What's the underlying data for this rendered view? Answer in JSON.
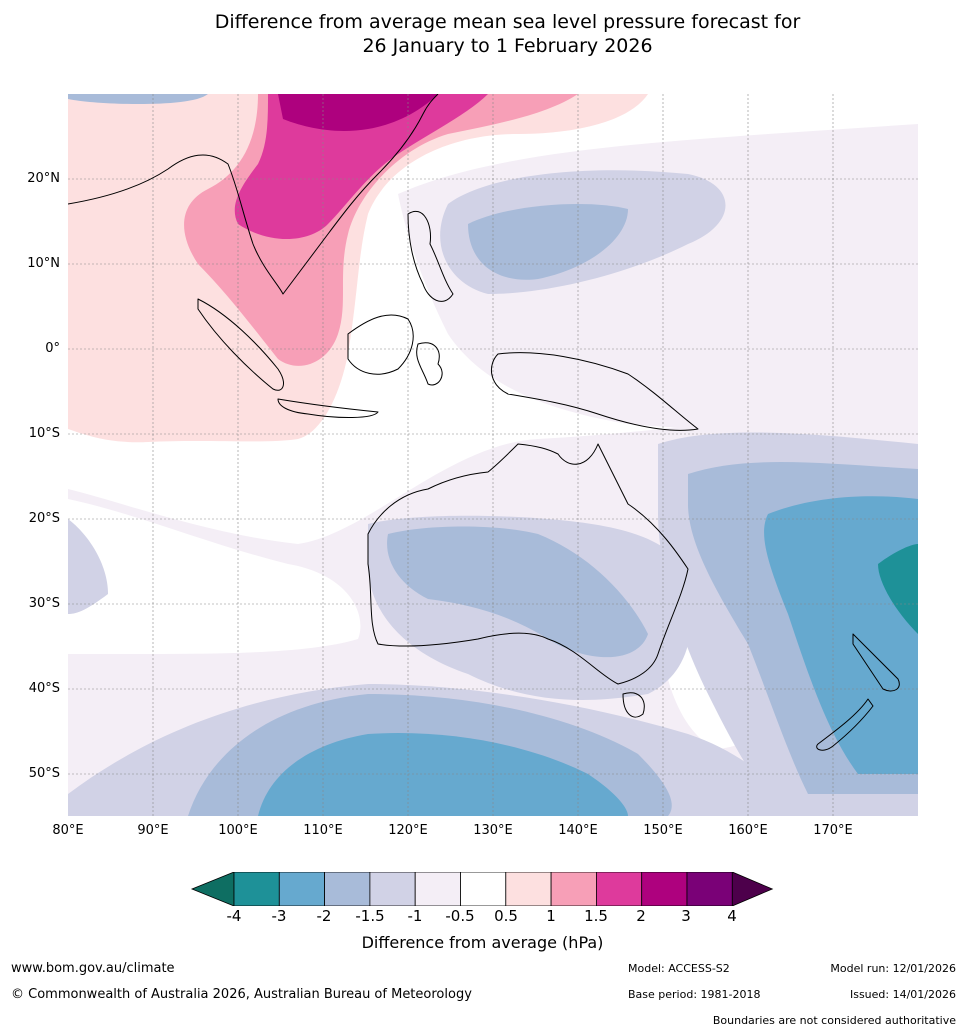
{
  "title": {
    "line1": "Difference from average mean sea level pressure forecast for",
    "line2": "26 January to 1 February 2026"
  },
  "map": {
    "lat_labels": [
      "20°N",
      "10°N",
      "0°",
      "10°S",
      "20°S",
      "30°S",
      "40°S",
      "50°S"
    ],
    "lon_labels": [
      "80°E",
      "90°E",
      "100°E",
      "110°E",
      "120°E",
      "130°E",
      "140°E",
      "150°E",
      "160°E",
      "170°E"
    ]
  },
  "colorbar": {
    "title": "Difference from average (hPa)",
    "tick_labels": [
      "-4",
      "-3",
      "-2",
      "-1.5",
      "-1",
      "-0.5",
      "0.5",
      "1",
      "1.5",
      "2",
      "3",
      "4"
    ],
    "colors": [
      "#0e6e62",
      "#1e9198",
      "#66a9cf",
      "#a8bbd9",
      "#d1d2e6",
      "#f4eef6",
      "#ffffff",
      "#fde0e0",
      "#f79fb7",
      "#de3a9c",
      "#ae017e",
      "#7a0177",
      "#4d004b"
    ]
  },
  "footer": {
    "website": "www.bom.gov.au/climate",
    "copyright": "© Commonwealth of Australia 2026, Australian Bureau of Meteorology",
    "model": "Model: ACCESS-S2",
    "base_period": "Base period: 1981-2018",
    "model_run": "Model run: 12/01/2026",
    "issued": "Issued: 14/01/2026",
    "disclaimer": "Boundaries are not considered authoritative"
  }
}
